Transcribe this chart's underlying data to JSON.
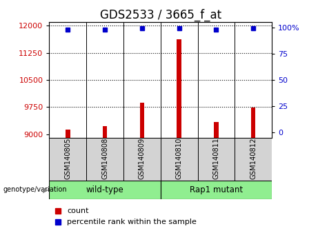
{
  "title": "GDS2533 / 3665_f_at",
  "samples": [
    "GSM140805",
    "GSM140808",
    "GSM140809",
    "GSM140810",
    "GSM140811",
    "GSM140812"
  ],
  "counts": [
    9130,
    9230,
    9870,
    11620,
    9340,
    9730
  ],
  "percentile_ranks": [
    98,
    98,
    99,
    99,
    98,
    99
  ],
  "ylim_left": [
    8900,
    12100
  ],
  "yticks_left": [
    9000,
    9750,
    10500,
    11250,
    12000
  ],
  "ylim_right": [
    -5,
    105
  ],
  "yticks_right": [
    0,
    25,
    50,
    75,
    100
  ],
  "ytick_right_labels": [
    "0",
    "25",
    "50",
    "75",
    "100%"
  ],
  "bar_color": "#CC0000",
  "dot_color": "#0000CC",
  "bar_width": 0.12,
  "title_fontsize": 12,
  "tick_fontsize": 8,
  "left_tick_color": "#CC0000",
  "right_tick_color": "#0000CC",
  "legend_count_color": "#CC0000",
  "legend_pct_color": "#0000CC",
  "sample_box_color": "#d3d3d3",
  "group_box_color": "#90EE90",
  "arrow_color": "#808080"
}
